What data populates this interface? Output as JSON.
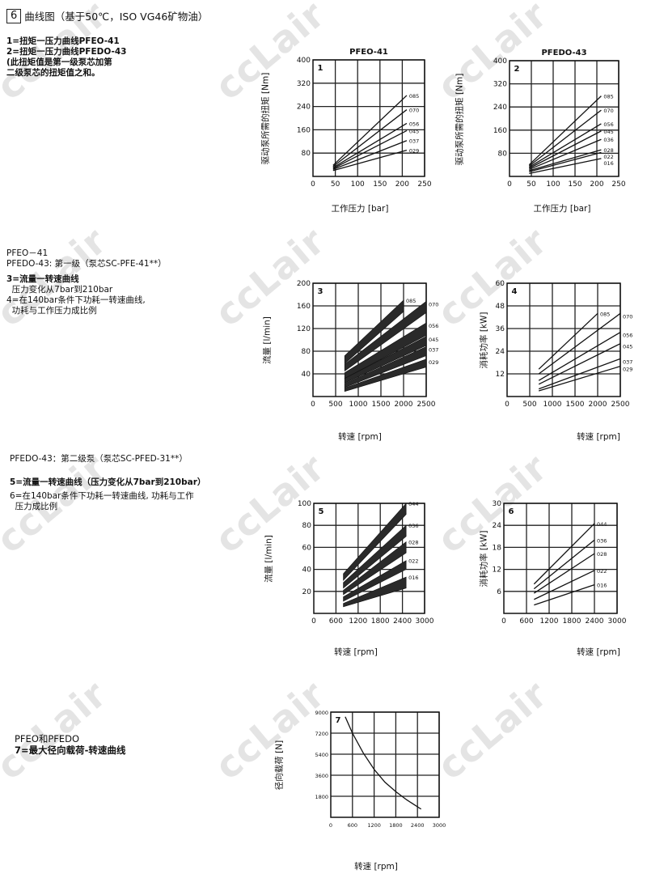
{
  "watermark": "ccLair",
  "header": {
    "section_number": "6",
    "title": "曲线图（基于50℃，ISO VG46矿物油）"
  },
  "block1": {
    "lines": [
      "1=扭矩一压力曲线PFEO-41",
      "2=扭矩一压力曲线PFEDO-43",
      "(此扭矩值是第一级泵芯加第",
      "二级泵芯的扭矩值之和。"
    ]
  },
  "block2": {
    "lines": [
      "PFEO－41",
      "PFEDO-43:    第一级（泵芯SC-PFE-41**）",
      "3=流量一转速曲线",
      "  压力变化从7bar到210bar",
      "4=在140bar条件下功耗一转速曲线,",
      "  功耗与工作压力成比例"
    ]
  },
  "block3": {
    "lines": [
      "PFEDO-43：第二级泵（泵芯SC-PFED-31**）",
      "5=流量一转速曲线（压力变化从7bar到210bar）",
      "6=在140bar条件下功耗一转速曲线, 功耗与工作",
      "  压力成比例"
    ]
  },
  "block4": {
    "lines": [
      "PFEO和PFEDO",
      "7=最大径向载荷-转速曲线"
    ]
  },
  "chart_data": [
    {
      "id": "1",
      "type": "line",
      "title": "PFEO-41",
      "xlabel": "工作压力 [bar]",
      "ylabel": "驱动泵所需的扭矩 [Nm]",
      "xlim": [
        0,
        250
      ],
      "ylim": [
        0,
        400
      ],
      "xticks": [
        0,
        50,
        100,
        150,
        200,
        250
      ],
      "yticks": [
        80,
        160,
        240,
        320,
        400
      ],
      "grid": true,
      "series": [
        {
          "name": "085",
          "x": [
            45,
            210
          ],
          "y": [
            38,
            278
          ]
        },
        {
          "name": "070",
          "x": [
            45,
            210
          ],
          "y": [
            34,
            229
          ]
        },
        {
          "name": "056",
          "x": [
            45,
            210
          ],
          "y": [
            30,
            182
          ]
        },
        {
          "name": "045",
          "x": [
            45,
            210
          ],
          "y": [
            27,
            157
          ]
        },
        {
          "name": "037",
          "x": [
            45,
            210
          ],
          "y": [
            24,
            123
          ]
        },
        {
          "name": "029",
          "x": [
            45,
            210
          ],
          "y": [
            20,
            90
          ]
        }
      ]
    },
    {
      "id": "2",
      "type": "line",
      "title": "PFEDO-43",
      "xlabel": "工作压力 [bar]",
      "ylabel": "驱动泵所需的扭矩 [Nm]",
      "xlim": [
        0,
        250
      ],
      "ylim": [
        0,
        400
      ],
      "xticks": [
        0,
        50,
        100,
        150,
        200,
        250
      ],
      "yticks": [
        80,
        160,
        240,
        320,
        400
      ],
      "grid": true,
      "series": [
        {
          "name": "085",
          "x": [
            45,
            210
          ],
          "y": [
            40,
            278
          ]
        },
        {
          "name": "070",
          "x": [
            45,
            210
          ],
          "y": [
            36,
            229
          ]
        },
        {
          "name": "056",
          "x": [
            45,
            210
          ],
          "y": [
            32,
            182
          ]
        },
        {
          "name": "045",
          "x": [
            45,
            210
          ],
          "y": [
            28,
            157
          ]
        },
        {
          "name": "036",
          "x": [
            45,
            210
          ],
          "y": [
            24,
            128
          ]
        },
        {
          "name": "028",
          "x": [
            45,
            210
          ],
          "y": [
            20,
            92
          ]
        },
        {
          "name": "022",
          "x": [
            45,
            210
          ],
          "y": [
            16,
            83
          ]
        },
        {
          "name": "016",
          "x": [
            45,
            210
          ],
          "y": [
            10,
            62
          ]
        }
      ]
    },
    {
      "id": "3",
      "type": "area",
      "title": "",
      "xlabel": "转速 [rpm]",
      "ylabel": "流量 [l/min]",
      "xlim": [
        0,
        2500
      ],
      "ylim": [
        0,
        200
      ],
      "xticks": [
        0,
        500,
        1000,
        1500,
        2000,
        2500
      ],
      "yticks": [
        40,
        80,
        120,
        160,
        200
      ],
      "grid": true,
      "series": [
        {
          "name": "085",
          "x": [
            700,
            2000
          ],
          "low": [
            58,
            150
          ],
          "high": [
            72,
            170
          ]
        },
        {
          "name": "070",
          "x": [
            700,
            2500
          ],
          "low": [
            45,
            148
          ],
          "high": [
            57,
            168
          ]
        },
        {
          "name": "056",
          "x": [
            700,
            2500
          ],
          "low": [
            32,
            108
          ],
          "high": [
            42,
            130
          ]
        },
        {
          "name": "045",
          "x": [
            700,
            2500
          ],
          "low": [
            24,
            90
          ],
          "high": [
            32,
            106
          ]
        },
        {
          "name": "037",
          "x": [
            700,
            2500
          ],
          "low": [
            16,
            72
          ],
          "high": [
            23,
            88
          ]
        },
        {
          "name": "029",
          "x": [
            700,
            2500
          ],
          "low": [
            9,
            52
          ],
          "high": [
            15,
            66
          ]
        }
      ]
    },
    {
      "id": "4",
      "type": "line",
      "title": "",
      "xlabel": "转速 [rpm]",
      "ylabel": "消耗功率 [kW]",
      "xlim": [
        0,
        2500
      ],
      "ylim": [
        0,
        60
      ],
      "xticks": [
        0,
        500,
        1000,
        1500,
        2000,
        2500
      ],
      "yticks": [
        12,
        24,
        36,
        48,
        60
      ],
      "grid": true,
      "series": [
        {
          "name": "085",
          "x": [
            700,
            2000
          ],
          "y": [
            14.5,
            44
          ]
        },
        {
          "name": "070",
          "x": [
            700,
            2500
          ],
          "y": [
            12,
            44
          ]
        },
        {
          "name": "056",
          "x": [
            700,
            2500
          ],
          "y": [
            8.5,
            34
          ]
        },
        {
          "name": "045",
          "x": [
            700,
            2500
          ],
          "y": [
            6.5,
            28
          ]
        },
        {
          "name": "037",
          "x": [
            700,
            2500
          ],
          "y": [
            4,
            20
          ]
        },
        {
          "name": "029",
          "x": [
            700,
            2500
          ],
          "y": [
            3,
            16
          ]
        }
      ]
    },
    {
      "id": "5",
      "type": "area",
      "title": "",
      "xlabel": "转速 [rpm]",
      "ylabel": "流量 [l/min]",
      "xlim": [
        0,
        3000
      ],
      "ylim": [
        0,
        100
      ],
      "xticks": [
        0,
        600,
        1200,
        1800,
        2400,
        3000
      ],
      "yticks": [
        20,
        40,
        60,
        80,
        100
      ],
      "grid": true,
      "series": [
        {
          "name": "044",
          "x": [
            800,
            2500
          ],
          "low": [
            30,
            90
          ],
          "high": [
            36,
            100
          ]
        },
        {
          "name": "036",
          "x": [
            800,
            2500
          ],
          "low": [
            23,
            70
          ],
          "high": [
            28,
            80
          ]
        },
        {
          "name": "028",
          "x": [
            800,
            2500
          ],
          "low": [
            17,
            55
          ],
          "high": [
            21,
            65
          ]
        },
        {
          "name": "022",
          "x": [
            800,
            2500
          ],
          "low": [
            11,
            40
          ],
          "high": [
            15,
            48
          ]
        },
        {
          "name": "016",
          "x": [
            800,
            2500
          ],
          "low": [
            6,
            23
          ],
          "high": [
            9,
            33
          ]
        }
      ]
    },
    {
      "id": "6",
      "type": "line",
      "title": "",
      "xlabel": "转速 [rpm]",
      "ylabel": "消耗功率 [kW]",
      "xlim": [
        0,
        3000
      ],
      "ylim": [
        0,
        30
      ],
      "xticks": [
        0,
        600,
        1200,
        1800,
        2400,
        3000
      ],
      "yticks": [
        6,
        12,
        18,
        24,
        30
      ],
      "grid": true,
      "series": [
        {
          "name": "044",
          "x": [
            800,
            2400
          ],
          "y": [
            8,
            24.5
          ]
        },
        {
          "name": "036",
          "x": [
            800,
            2400
          ],
          "y": [
            6.7,
            20
          ]
        },
        {
          "name": "028",
          "x": [
            800,
            2400
          ],
          "y": [
            5.5,
            16.3
          ]
        },
        {
          "name": "022",
          "x": [
            800,
            2400
          ],
          "y": [
            3.8,
            11.7
          ]
        },
        {
          "name": "016",
          "x": [
            800,
            2400
          ],
          "y": [
            2.3,
            7.8
          ]
        }
      ]
    },
    {
      "id": "7",
      "type": "line",
      "title": "",
      "xlabel": "转速 [rpm]",
      "ylabel": "径向载荷 [N]",
      "xlim": [
        0,
        3000
      ],
      "ylim": [
        0,
        9000
      ],
      "xticks": [
        0,
        600,
        1200,
        1800,
        2400,
        3000
      ],
      "yticks": [
        1800,
        3600,
        5400,
        7200,
        9000
      ],
      "grid": true,
      "series": [
        {
          "x": [
            400,
            600,
            900,
            1200,
            1500,
            1800,
            2100,
            2500
          ],
          "y": [
            8600,
            7200,
            5500,
            4100,
            3000,
            2200,
            1500,
            700
          ]
        }
      ]
    }
  ]
}
